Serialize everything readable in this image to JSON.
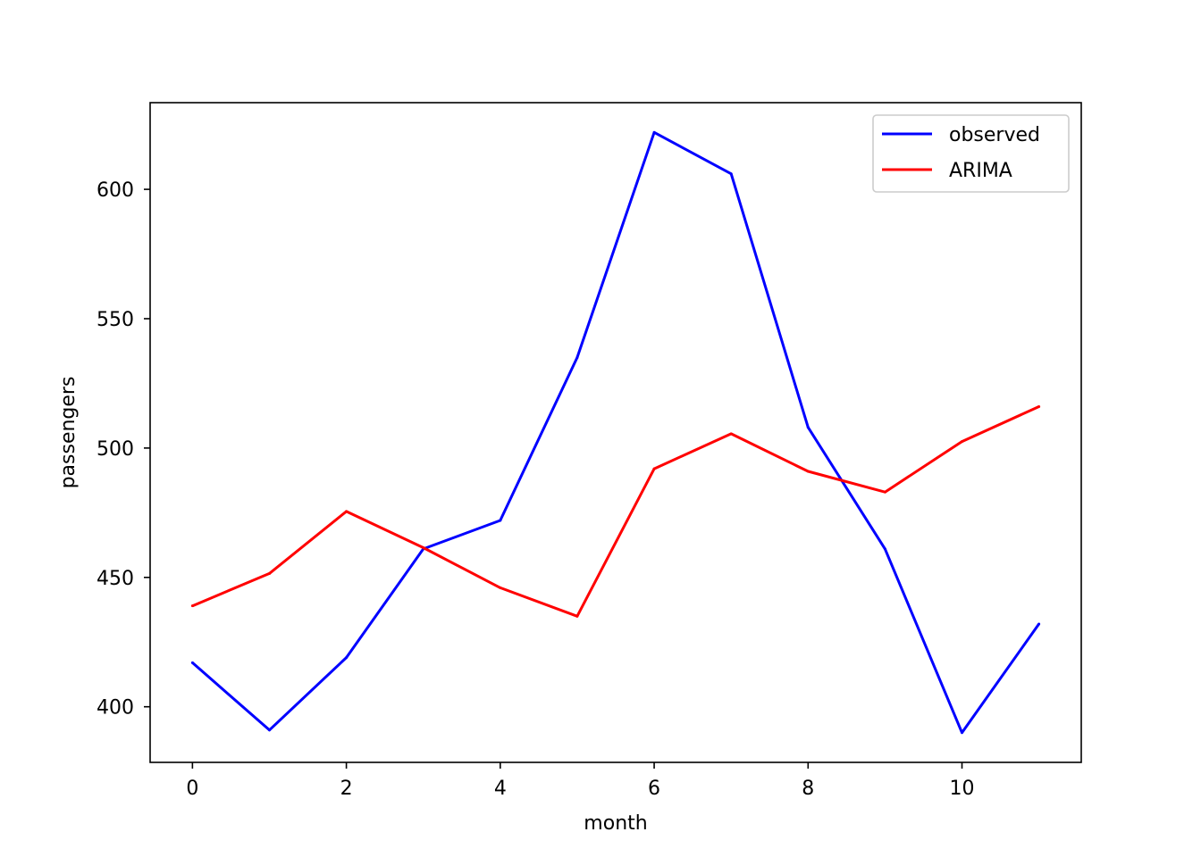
{
  "chart_data": {
    "type": "line",
    "title": "",
    "xlabel": "month",
    "ylabel": "passengers",
    "x": [
      0,
      1,
      2,
      3,
      4,
      5,
      6,
      7,
      8,
      9,
      10,
      11
    ],
    "xlim": [
      -0.55,
      11.55
    ],
    "ylim": [
      378.5,
      633.5
    ],
    "xticks": [
      0,
      2,
      4,
      6,
      8,
      10
    ],
    "yticks": [
      400,
      450,
      500,
      550,
      600
    ],
    "grid": false,
    "legend_position": "top-right",
    "series": [
      {
        "name": "observed",
        "color": "#0000ff",
        "values": [
          417,
          391,
          419,
          461,
          472,
          535,
          622,
          606,
          508,
          461,
          390,
          432
        ]
      },
      {
        "name": "ARIMA",
        "color": "#ff0000",
        "values": [
          439,
          451.5,
          475.5,
          461.5,
          446,
          435,
          492,
          505.5,
          491,
          483,
          502.5,
          516
        ]
      }
    ]
  }
}
